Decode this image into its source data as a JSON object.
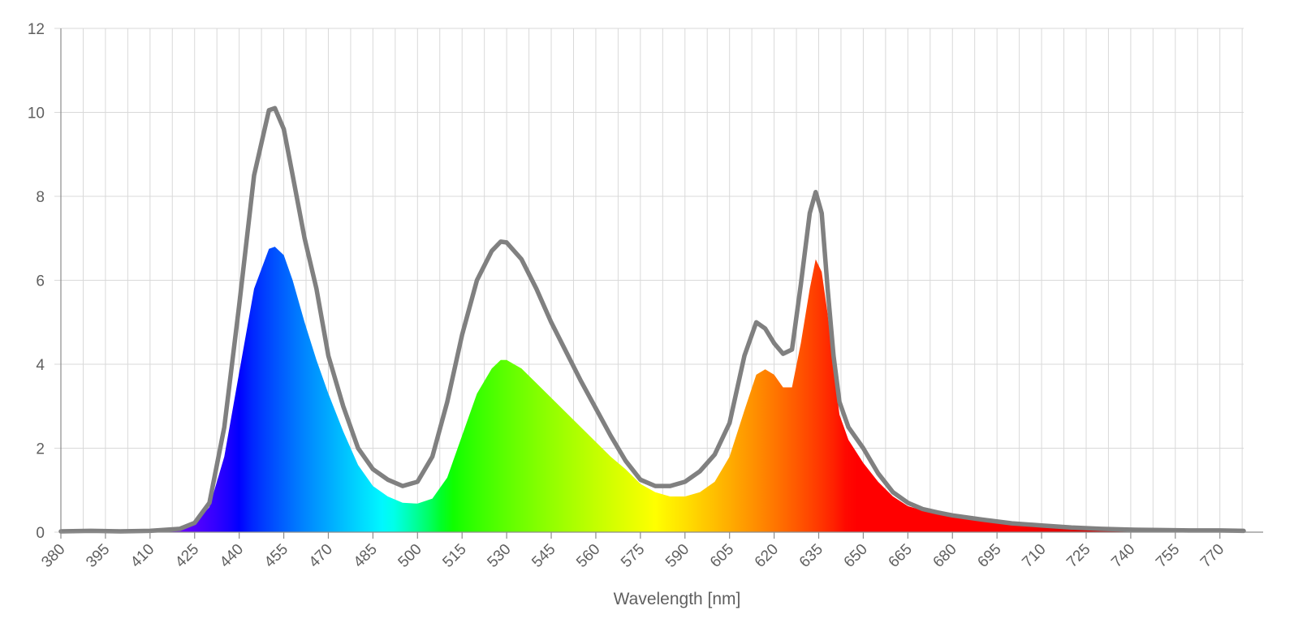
{
  "chart_data": {
    "type": "area",
    "title": "",
    "xlabel": "Wavelength [nm]",
    "ylabel": "",
    "xlim": [
      380,
      778
    ],
    "ylim": [
      0,
      12
    ],
    "grid": true,
    "legend": "none",
    "x_ticks": [
      380,
      395,
      410,
      425,
      440,
      455,
      470,
      485,
      500,
      515,
      530,
      545,
      560,
      575,
      590,
      605,
      620,
      635,
      650,
      665,
      680,
      695,
      710,
      725,
      740,
      755,
      770
    ],
    "y_ticks": [
      0,
      2,
      4,
      6,
      8,
      10,
      12
    ],
    "x_minor_ticks": [
      387.5,
      402.5,
      417.5,
      432.5,
      447.5,
      462.5,
      477.5,
      492.5,
      507.5,
      522.5,
      537.5,
      552.5,
      567.5,
      582.5,
      597.5,
      612.5,
      627.5,
      642.5,
      657.5,
      672.5,
      687.5,
      702.5,
      717.5,
      732.5,
      747.5,
      762.5,
      777.5
    ],
    "colors": {
      "envelope_line": "#808080",
      "grid": "#d9d9d9",
      "text": "#5f5f5f"
    },
    "series": [
      {
        "style": "spectral-fill",
        "x": [
          380,
          390,
          400,
          410,
          420,
          425,
          430,
          435,
          440,
          445,
          450,
          452,
          455,
          458,
          462,
          466,
          470,
          475,
          480,
          485,
          490,
          495,
          500,
          505,
          510,
          515,
          520,
          525,
          528,
          530,
          535,
          540,
          545,
          550,
          555,
          560,
          565,
          570,
          575,
          580,
          585,
          590,
          595,
          600,
          605,
          610,
          614,
          617,
          620,
          623,
          626,
          629,
          632,
          634,
          636,
          638,
          640,
          642,
          645,
          650,
          655,
          660,
          665,
          670,
          675,
          680,
          690,
          700,
          710,
          720,
          730,
          740,
          750,
          760,
          770,
          778
        ],
        "y": [
          0.02,
          0.03,
          0.02,
          0.03,
          0.08,
          0.2,
          0.6,
          1.8,
          3.8,
          5.8,
          6.75,
          6.8,
          6.6,
          6.0,
          5.0,
          4.1,
          3.3,
          2.4,
          1.6,
          1.1,
          0.85,
          0.7,
          0.68,
          0.8,
          1.3,
          2.3,
          3.3,
          3.9,
          4.1,
          4.1,
          3.9,
          3.55,
          3.2,
          2.85,
          2.5,
          2.15,
          1.8,
          1.5,
          1.15,
          0.95,
          0.85,
          0.85,
          0.95,
          1.2,
          1.8,
          2.9,
          3.75,
          3.88,
          3.75,
          3.45,
          3.45,
          4.5,
          5.8,
          6.5,
          6.2,
          5.2,
          3.9,
          2.8,
          2.2,
          1.65,
          1.2,
          0.85,
          0.62,
          0.52,
          0.45,
          0.38,
          0.28,
          0.2,
          0.15,
          0.1,
          0.07,
          0.05,
          0.04,
          0.03,
          0.03,
          0.03
        ]
      },
      {
        "style": "envelope-line",
        "x": [
          380,
          390,
          400,
          410,
          420,
          425,
          430,
          435,
          440,
          445,
          450,
          452,
          455,
          458,
          462,
          466,
          470,
          475,
          480,
          485,
          490,
          495,
          500,
          505,
          510,
          515,
          520,
          525,
          528,
          530,
          535,
          540,
          545,
          550,
          555,
          560,
          565,
          570,
          575,
          580,
          585,
          590,
          595,
          600,
          605,
          610,
          614,
          617,
          620,
          623,
          626,
          629,
          632,
          634,
          636,
          638,
          640,
          642,
          645,
          650,
          655,
          660,
          665,
          670,
          675,
          680,
          690,
          700,
          710,
          720,
          730,
          740,
          750,
          760,
          770,
          778
        ],
        "y": [
          0.02,
          0.03,
          0.02,
          0.03,
          0.08,
          0.22,
          0.7,
          2.5,
          5.4,
          8.5,
          10.05,
          10.1,
          9.6,
          8.5,
          7.0,
          5.8,
          4.2,
          3.0,
          2.0,
          1.5,
          1.25,
          1.1,
          1.2,
          1.8,
          3.1,
          4.7,
          6.0,
          6.7,
          6.92,
          6.9,
          6.5,
          5.8,
          5.0,
          4.3,
          3.6,
          2.95,
          2.3,
          1.7,
          1.25,
          1.1,
          1.1,
          1.2,
          1.45,
          1.85,
          2.6,
          4.2,
          5.0,
          4.85,
          4.5,
          4.25,
          4.35,
          5.9,
          7.6,
          8.1,
          7.6,
          5.8,
          4.2,
          3.1,
          2.5,
          2.0,
          1.4,
          0.95,
          0.7,
          0.55,
          0.47,
          0.4,
          0.3,
          0.21,
          0.16,
          0.11,
          0.08,
          0.06,
          0.05,
          0.04,
          0.04,
          0.03
        ]
      }
    ]
  }
}
